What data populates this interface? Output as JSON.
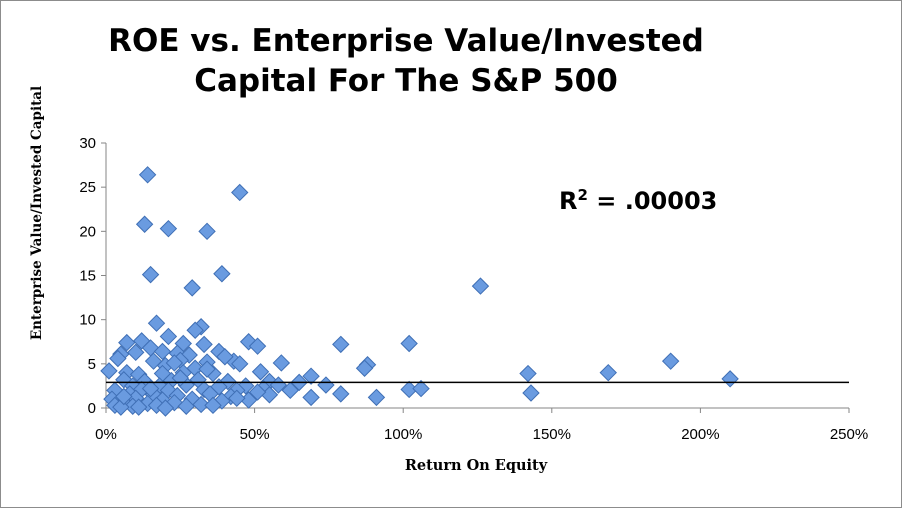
{
  "chart_data": {
    "type": "scatter",
    "title_lines": [
      "ROE vs. Enterprise Value/Invested",
      "Capital For The S&P 500"
    ],
    "xlabel": "Return On Equity",
    "ylabel": "Enterprise Value/Invested Capital",
    "xlim": [
      0,
      2.5
    ],
    "ylim": [
      0,
      30
    ],
    "x_ticks": [
      0,
      0.5,
      1.0,
      1.5,
      2.0,
      2.5
    ],
    "x_tick_labels": [
      "0%",
      "50%",
      "100%",
      "150%",
      "200%",
      "250%"
    ],
    "y_ticks": [
      0,
      5,
      10,
      15,
      20,
      25,
      30
    ],
    "y_tick_labels": [
      "0",
      "5",
      "10",
      "15",
      "20",
      "25",
      "30"
    ],
    "grid": false,
    "annotation": {
      "label": "R",
      "superscript": "2",
      "value": " = .00003"
    },
    "marker": {
      "shape": "diamond",
      "color": "#6a9be0",
      "edge_color": "#3f6fb5"
    },
    "trendline": {
      "color": "#000000",
      "y": 2.9
    },
    "series": [
      {
        "points": [
          [
            0.14,
            26.4
          ],
          [
            0.45,
            24.4
          ],
          [
            0.13,
            20.8
          ],
          [
            0.21,
            20.3
          ],
          [
            0.34,
            20.0
          ],
          [
            0.15,
            15.1
          ],
          [
            0.39,
            15.2
          ],
          [
            0.29,
            13.6
          ],
          [
            1.26,
            13.8
          ],
          [
            0.17,
            9.6
          ],
          [
            0.32,
            9.2
          ],
          [
            0.3,
            8.8
          ],
          [
            0.21,
            8.1
          ],
          [
            0.12,
            7.6
          ],
          [
            0.07,
            7.4
          ],
          [
            0.48,
            7.5
          ],
          [
            0.51,
            7.0
          ],
          [
            0.79,
            7.2
          ],
          [
            1.02,
            7.3
          ],
          [
            0.26,
            7.3
          ],
          [
            0.33,
            7.2
          ],
          [
            0.15,
            6.8
          ],
          [
            0.05,
            6.1
          ],
          [
            0.1,
            6.3
          ],
          [
            0.19,
            6.4
          ],
          [
            0.24,
            6.2
          ],
          [
            0.38,
            6.4
          ],
          [
            0.28,
            6.0
          ],
          [
            0.04,
            5.6
          ],
          [
            0.16,
            5.3
          ],
          [
            0.25,
            5.4
          ],
          [
            0.34,
            5.2
          ],
          [
            0.43,
            5.3
          ],
          [
            0.45,
            5.0
          ],
          [
            0.59,
            5.1
          ],
          [
            0.88,
            4.9
          ],
          [
            1.9,
            5.3
          ],
          [
            0.2,
            4.8
          ],
          [
            0.3,
            4.5
          ],
          [
            0.87,
            4.5
          ],
          [
            0.01,
            4.2
          ],
          [
            0.07,
            4.0
          ],
          [
            0.11,
            3.8
          ],
          [
            0.19,
            3.9
          ],
          [
            0.26,
            4.0
          ],
          [
            0.36,
            3.9
          ],
          [
            0.52,
            4.1
          ],
          [
            0.69,
            3.6
          ],
          [
            1.42,
            3.9
          ],
          [
            1.69,
            4.0
          ],
          [
            2.1,
            3.3
          ],
          [
            0.06,
            3.2
          ],
          [
            0.13,
            3.0
          ],
          [
            0.22,
            3.1
          ],
          [
            0.31,
            3.2
          ],
          [
            0.41,
            3.0
          ],
          [
            0.55,
            3.0
          ],
          [
            0.65,
            2.9
          ],
          [
            0.09,
            2.5
          ],
          [
            0.18,
            2.5
          ],
          [
            0.27,
            2.6
          ],
          [
            0.38,
            2.4
          ],
          [
            0.47,
            2.5
          ],
          [
            0.58,
            2.6
          ],
          [
            0.03,
            2.0
          ],
          [
            0.12,
            2.1
          ],
          [
            0.21,
            2.0
          ],
          [
            0.33,
            2.1
          ],
          [
            0.44,
            2.0
          ],
          [
            0.53,
            2.2
          ],
          [
            1.02,
            2.1
          ],
          [
            1.06,
            2.2
          ],
          [
            1.43,
            1.7
          ],
          [
            0.08,
            1.6
          ],
          [
            0.16,
            1.5
          ],
          [
            0.24,
            1.4
          ],
          [
            0.35,
            1.6
          ],
          [
            0.42,
            1.3
          ],
          [
            0.55,
            1.5
          ],
          [
            0.69,
            1.2
          ],
          [
            0.79,
            1.6
          ],
          [
            0.91,
            1.2
          ],
          [
            0.02,
            1.0
          ],
          [
            0.1,
            1.1
          ],
          [
            0.19,
            0.9
          ],
          [
            0.29,
            1.0
          ],
          [
            0.39,
            0.8
          ],
          [
            0.48,
            0.9
          ],
          [
            0.06,
            0.6
          ],
          [
            0.14,
            0.5
          ],
          [
            0.23,
            0.6
          ],
          [
            0.32,
            0.4
          ],
          [
            0.03,
            0.3
          ],
          [
            0.09,
            0.2
          ],
          [
            0.17,
            0.3
          ],
          [
            0.27,
            0.2
          ],
          [
            0.05,
            0.1
          ],
          [
            0.11,
            0.1
          ],
          [
            0.2,
            0.0
          ],
          [
            0.36,
            0.3
          ],
          [
            0.44,
            1.1
          ],
          [
            0.51,
            1.8
          ],
          [
            0.62,
            2.0
          ],
          [
            0.74,
            2.6
          ],
          [
            0.06,
            1.3
          ],
          [
            0.15,
            2.2
          ],
          [
            0.25,
            3.4
          ],
          [
            0.34,
            4.4
          ],
          [
            0.4,
            5.8
          ],
          [
            0.23,
            5.1
          ]
        ]
      }
    ]
  }
}
